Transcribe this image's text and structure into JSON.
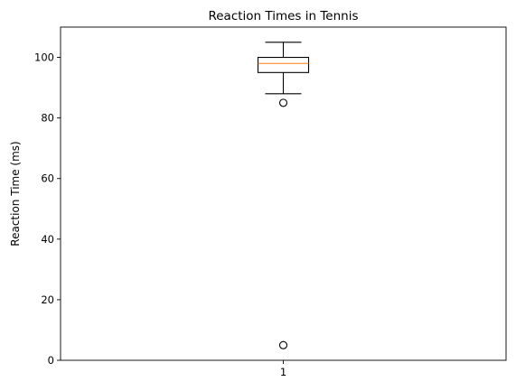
{
  "chart_data": {
    "type": "box",
    "title": "Reaction Times in Tennis",
    "xlabel": "",
    "ylabel": "Reaction Time (ms)",
    "ylim": [
      0,
      110
    ],
    "yticks": [
      0,
      20,
      40,
      60,
      80,
      100
    ],
    "xticks": [
      "1"
    ],
    "grid": false,
    "boxes": [
      {
        "category": "1",
        "whisker_low": 88,
        "q1": 95,
        "median": 98,
        "q3": 100,
        "whisker_high": 105,
        "outliers": [
          85,
          5
        ]
      }
    ],
    "colors": {
      "box": "#000000",
      "median": "#ff7f0e",
      "outlier": "#000000"
    }
  }
}
